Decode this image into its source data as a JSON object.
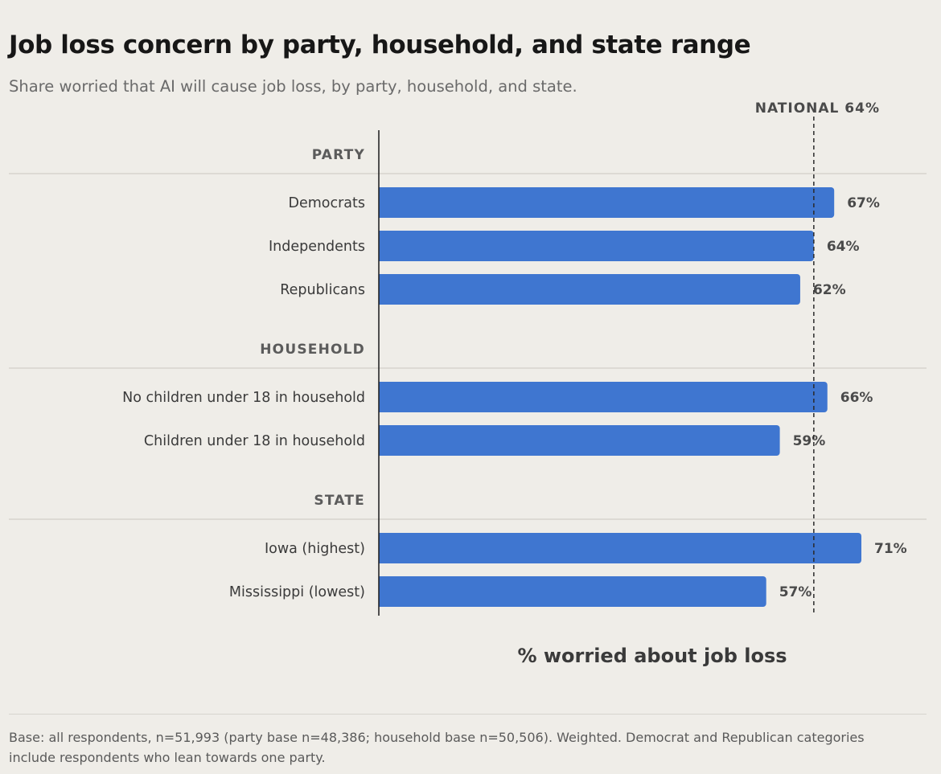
{
  "header": {
    "title": "Job loss concern by party, household, and state range",
    "subtitle": "Share worried that AI will cause job loss, by party, household, and state."
  },
  "chart_data": {
    "type": "bar",
    "orientation": "horizontal",
    "xlabel": "% worried about job loss",
    "xlim": [
      0,
      71
    ],
    "reference_line": {
      "label": "NATIONAL 64%",
      "value": 64
    },
    "groups": [
      {
        "name": "PARTY",
        "bars": [
          {
            "label": "Democrats",
            "value": 67,
            "value_label": "67%"
          },
          {
            "label": "Independents",
            "value": 64,
            "value_label": "64%"
          },
          {
            "label": "Republicans",
            "value": 62,
            "value_label": "62%"
          }
        ]
      },
      {
        "name": "HOUSEHOLD",
        "bars": [
          {
            "label": "No children under 18 in household",
            "value": 66,
            "value_label": "66%"
          },
          {
            "label": "Children under 18 in household",
            "value": 59,
            "value_label": "59%"
          }
        ]
      },
      {
        "name": "STATE",
        "bars": [
          {
            "label": "Iowa (highest)",
            "value": 71,
            "value_label": "71%"
          },
          {
            "label": "Mississippi (lowest)",
            "value": 57,
            "value_label": "57%"
          }
        ]
      }
    ],
    "bar_color": "#3f76d0",
    "grid": false,
    "legend": "none"
  },
  "footer": {
    "note": "Base: all respondents, n=51,993 (party base n=48,386; household base n=50,506). Weighted. Democrat and Republican categories include respondents who lean towards one party."
  }
}
